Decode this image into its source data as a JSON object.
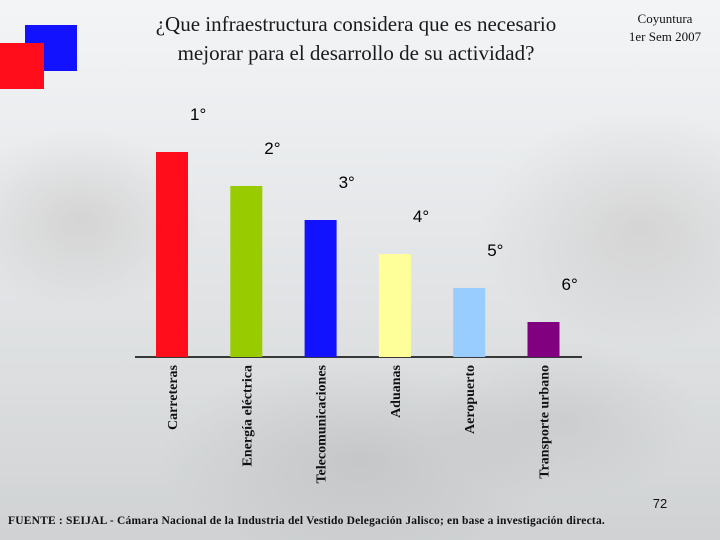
{
  "header": {
    "title_line1": "¿Que infraestructura considera que es necesario",
    "title_line2": "mejorar para el desarrollo de su actividad?",
    "corner_line1": "Coyuntura",
    "corner_line2": "1er Sem 2007"
  },
  "footer": {
    "page_number": "72",
    "source": "FUENTE : SEIJAL - Cámara Nacional de la Industria del Vestido Delegación Jalisco; en base a investigación directa."
  },
  "chart_data": {
    "type": "bar",
    "title": "",
    "xlabel": "",
    "ylabel": "",
    "categories": [
      "Carreteras",
      "Energía eléctrica",
      "Telecomunicaciones",
      "Aduanas",
      "Aeropuerto",
      "Transporte urbano"
    ],
    "rank_labels": [
      "1°",
      "2°",
      "3°",
      "4°",
      "5°",
      "6°"
    ],
    "values": [
      6,
      5,
      4,
      3,
      2,
      1
    ],
    "ylim": [
      0,
      6
    ],
    "colors": [
      "#ff0d1a",
      "#99cc00",
      "#1212ff",
      "#ffff99",
      "#99ccff",
      "#800080"
    ],
    "grid": false,
    "legend": "none"
  }
}
